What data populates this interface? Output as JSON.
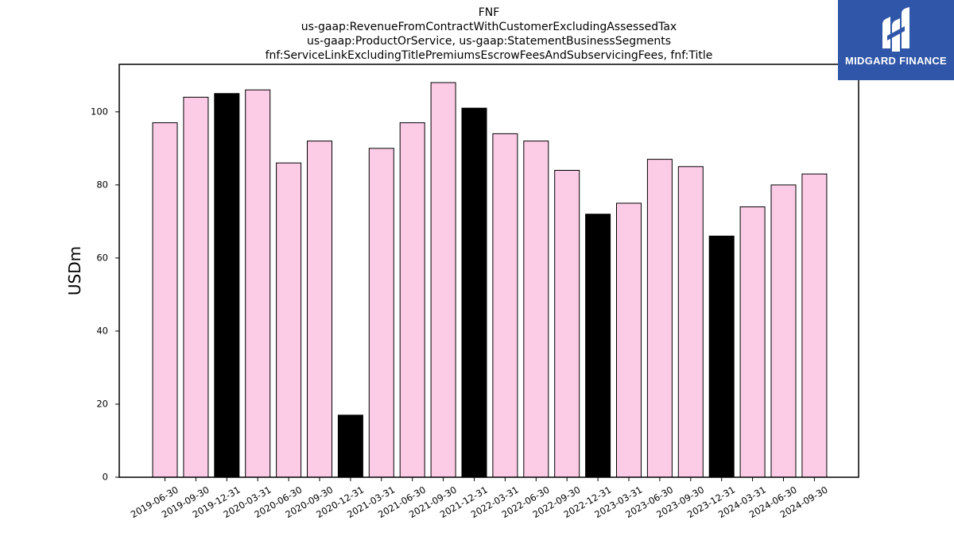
{
  "logo": {
    "text": "MIDGARD FINANCE",
    "icon": "midgard-finance-logo-icon",
    "color": "#2f56a8"
  },
  "chart_data": {
    "type": "bar",
    "title_lines": [
      "FNF",
      "us-gaap:RevenueFromContractWithCustomerExcludingAssessedTax",
      "us-gaap:ProductOrService, us-gaap:StatementBusinessSegments",
      "fnf:ServiceLinkExcludingTitlePremiumsEscrowFeesAndSubservicingFees, fnf:Title"
    ],
    "xlabel": "",
    "ylabel": "USDm",
    "ylim": [
      0,
      113
    ],
    "yticks": [
      0,
      20,
      40,
      60,
      80,
      100
    ],
    "grid": false,
    "categories": [
      "2019-06-30",
      "2019-09-30",
      "2019-12-31",
      "2020-03-31",
      "2020-06-30",
      "2020-09-30",
      "2020-12-31",
      "2021-03-31",
      "2021-06-30",
      "2021-09-30",
      "2021-12-31",
      "2022-03-31",
      "2022-06-30",
      "2022-09-30",
      "2022-12-31",
      "2023-03-31",
      "2023-06-30",
      "2023-09-30",
      "2023-12-31",
      "2024-03-31",
      "2024-06-30",
      "2024-09-30"
    ],
    "values": [
      97,
      104,
      105,
      106,
      86,
      92,
      17,
      90,
      97,
      108,
      101,
      94,
      92,
      84,
      72,
      75,
      87,
      85,
      66,
      74,
      80,
      83
    ],
    "highlight": [
      false,
      false,
      true,
      false,
      false,
      false,
      true,
      false,
      false,
      false,
      true,
      false,
      false,
      false,
      true,
      false,
      false,
      false,
      true,
      false,
      false,
      false
    ],
    "colors": {
      "bar": "#fccbe6",
      "highlight": "#000000",
      "edge": "#000000"
    }
  }
}
